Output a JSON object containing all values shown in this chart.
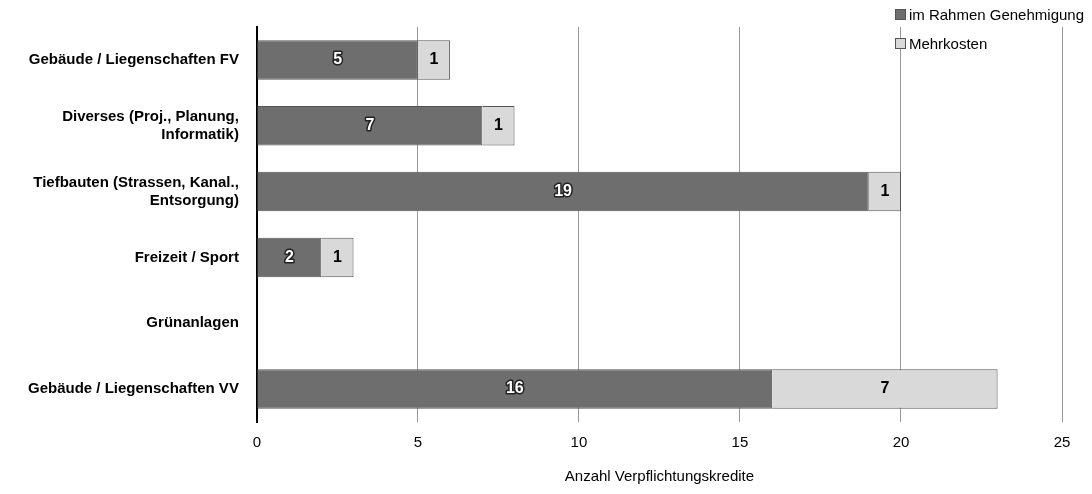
{
  "chart_data": {
    "type": "bar",
    "orientation": "horizontal",
    "stacked": true,
    "categories": [
      "Gebäude / Liegenschaften FV",
      "Diverses (Proj., Planung, Informatik)",
      "Tiefbauten (Strassen, Kanal., Entsorgung)",
      "Freizeit / Sport",
      "Grünanlagen",
      "Gebäude / Liegenschaften VV"
    ],
    "series": [
      {
        "name": "im Rahmen Genehmigung",
        "color": "#6e6e6e",
        "values": [
          5,
          7,
          19,
          2,
          null,
          16
        ]
      },
      {
        "name": "Mehrkosten",
        "color": "#d9d9d9",
        "values": [
          1,
          1,
          1,
          1,
          null,
          7
        ]
      }
    ],
    "xlim": [
      0,
      25
    ],
    "xticks": [
      0,
      5,
      10,
      15,
      20,
      25
    ],
    "xlabel": "Anzahl Verpflichtungskredite",
    "grid": "x",
    "legend": "top right",
    "data_labels": true
  }
}
